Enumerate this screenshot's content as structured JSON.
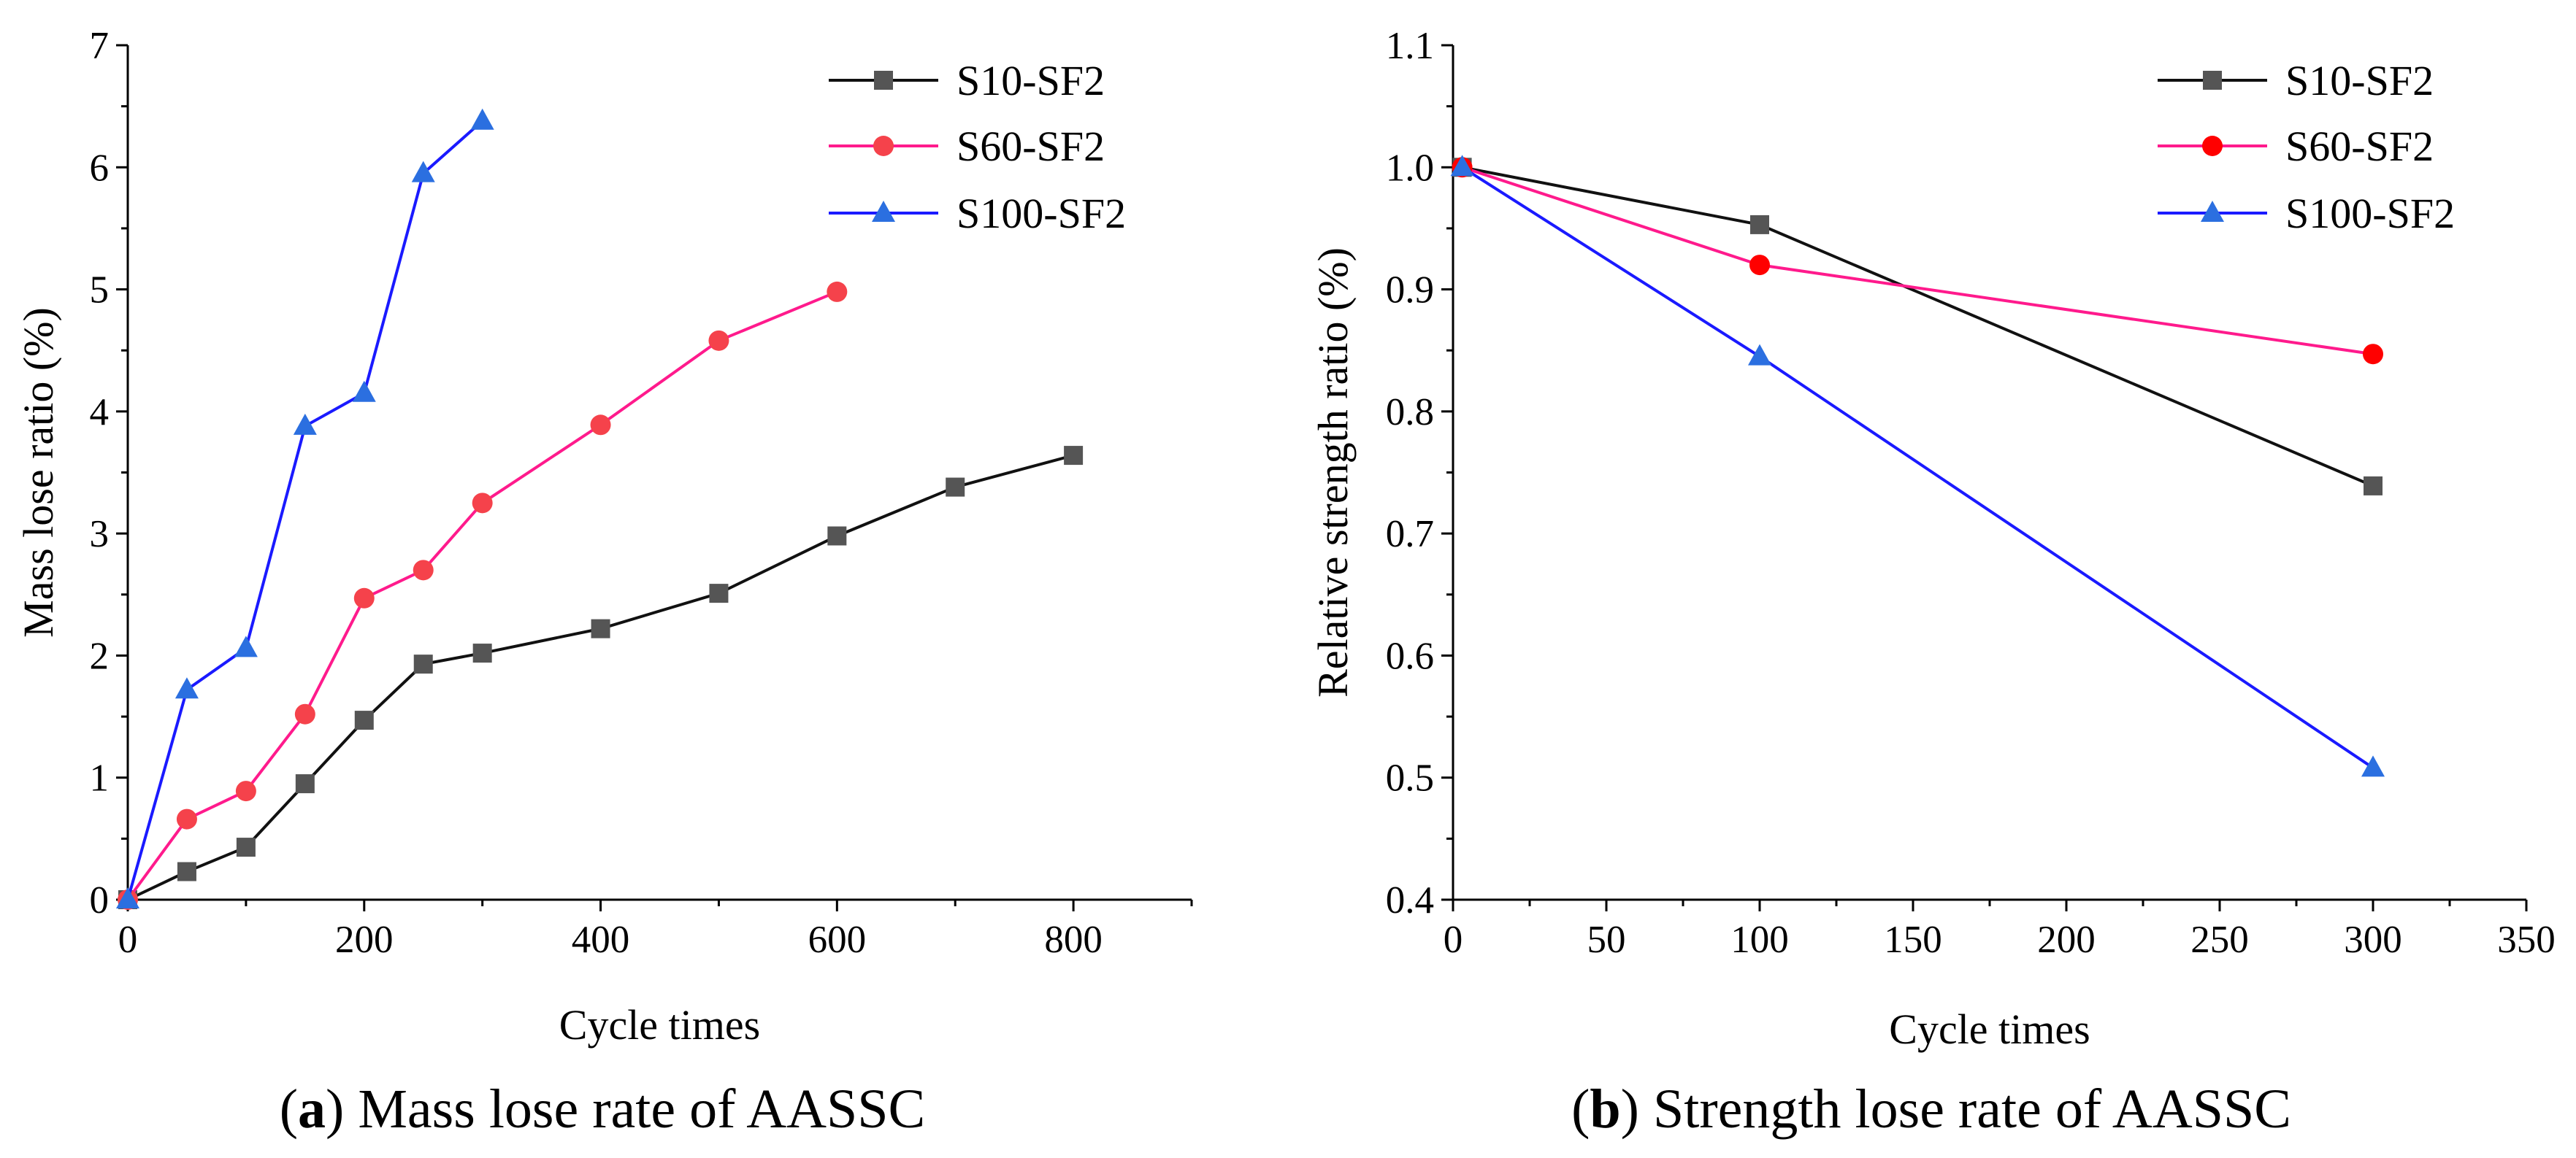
{
  "chart_data": [
    {
      "type": "line",
      "panel": "a",
      "caption_letter": "a",
      "caption_text": ") Mass lose rate of AASSC",
      "caption_open": "(",
      "xlabel": "Cycle times",
      "ylabel": "Mass lose ratio (%)",
      "xlim": [
        0,
        900
      ],
      "ylim": [
        0,
        7
      ],
      "xticks": [
        0,
        200,
        400,
        600,
        800
      ],
      "xtick_labels": [
        "0",
        "200",
        "400",
        "600",
        "800"
      ],
      "yticks": [
        0,
        1,
        2,
        3,
        4,
        5,
        6,
        7
      ],
      "ytick_labels": [
        "0",
        "1",
        "2",
        "3",
        "4",
        "5",
        "6",
        "7"
      ],
      "legend_position": "top-right",
      "series": [
        {
          "name": "S10-SF2",
          "color": "#111111",
          "marker_color": "#555555",
          "marker": "square",
          "x": [
            0,
            50,
            100,
            150,
            200,
            250,
            300,
            400,
            500,
            600,
            700,
            800
          ],
          "y": [
            0,
            0.23,
            0.43,
            0.95,
            1.47,
            1.93,
            2.02,
            2.22,
            2.51,
            2.98,
            3.38,
            3.64
          ]
        },
        {
          "name": "S60-SF2",
          "color": "#ff1a8c",
          "marker_color": "#f5424b",
          "marker": "circle",
          "x": [
            0,
            50,
            100,
            150,
            200,
            250,
            300,
            400,
            500,
            600
          ],
          "y": [
            0,
            0.66,
            0.89,
            1.52,
            2.47,
            2.7,
            3.25,
            3.89,
            4.58,
            4.98
          ]
        },
        {
          "name": "S100-SF2",
          "color": "#1a1aff",
          "marker_color": "#2b6fe0",
          "marker": "triangle",
          "x": [
            0,
            50,
            100,
            150,
            200,
            250,
            300
          ],
          "y": [
            0,
            1.72,
            2.06,
            3.88,
            4.15,
            5.95,
            6.38
          ]
        }
      ]
    },
    {
      "type": "line",
      "panel": "b",
      "caption_letter": "b",
      "caption_text": ") Strength lose rate of AASSC",
      "caption_open": "(",
      "xlabel": "Cycle times",
      "ylabel": "Relative strength ratio (%)",
      "xlim": [
        0,
        350
      ],
      "ylim": [
        0.4,
        1.1
      ],
      "xticks": [
        0,
        50,
        100,
        150,
        200,
        250,
        300,
        350
      ],
      "xtick_labels": [
        "0",
        "50",
        "100",
        "150",
        "200",
        "250",
        "300",
        "350"
      ],
      "yticks": [
        0.4,
        0.5,
        0.6,
        0.7,
        0.8,
        0.9,
        1.0,
        1.1
      ],
      "ytick_labels": [
        "0.4",
        "0.5",
        "0.6",
        "0.7",
        "0.8",
        "0.9",
        "1.0",
        "1.1"
      ],
      "legend_position": "top-right",
      "series": [
        {
          "name": "S10-SF2",
          "color": "#111111",
          "marker_color": "#555555",
          "marker": "square",
          "x": [
            3,
            100,
            300
          ],
          "y": [
            1.0,
            0.953,
            0.739
          ]
        },
        {
          "name": "S60-SF2",
          "color": "#ff1a8c",
          "marker_color": "#ff0000",
          "marker": "circle",
          "x": [
            3,
            100,
            300
          ],
          "y": [
            1.0,
            0.92,
            0.847
          ]
        },
        {
          "name": "S100-SF2",
          "color": "#1a1aff",
          "marker_color": "#2b6fe0",
          "marker": "triangle",
          "x": [
            3,
            100,
            300
          ],
          "y": [
            1.0,
            0.845,
            0.508
          ]
        }
      ]
    }
  ]
}
